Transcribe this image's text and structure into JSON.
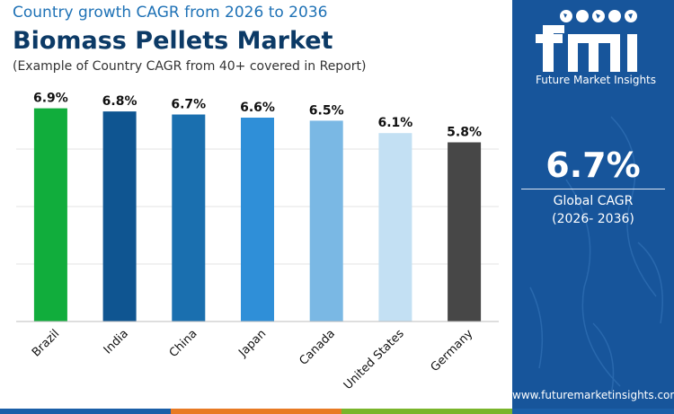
{
  "header": {
    "subtitle": "Country growth CAGR from 2026 to 2036",
    "title": "Biomass Pellets Market",
    "note": "(Example of Country CAGR from 40+ covered in Report)"
  },
  "chart_data": {
    "type": "bar",
    "title": "Biomass Pellets Market",
    "subtitle": "Country growth CAGR from 2026 to 2036",
    "categories": [
      "Brazil",
      "India",
      "China",
      "Japan",
      "Canada",
      "United States",
      "Germany"
    ],
    "values": [
      6.9,
      6.8,
      6.7,
      6.6,
      6.5,
      6.1,
      5.8
    ],
    "value_labels": [
      "6.9%",
      "6.8%",
      "6.7%",
      "6.6%",
      "6.5%",
      "6.1%",
      "5.8%"
    ],
    "colors": [
      "#11ad3c",
      "#0f5591",
      "#1a6faf",
      "#2f8fd8",
      "#7ab8e4",
      "#c3e0f3",
      "#474747"
    ],
    "unit": "%",
    "ylim": [
      0,
      7.5
    ],
    "grid": true,
    "xlabel": "",
    "ylabel": ""
  },
  "panel": {
    "logo_text": "Future Market Insights",
    "global_value": "6.7%",
    "global_label": "Global CAGR",
    "global_period": "(2026- 2036)",
    "website": "www.futuremarketinsights.com"
  },
  "colors": {
    "panel_bg": "#17559b",
    "title": "#0c3a66",
    "subtitle": "#1f72b6",
    "strip": [
      "#1b5fa8",
      "#e87a24",
      "#7ab52c",
      "#1b5fa8"
    ]
  }
}
